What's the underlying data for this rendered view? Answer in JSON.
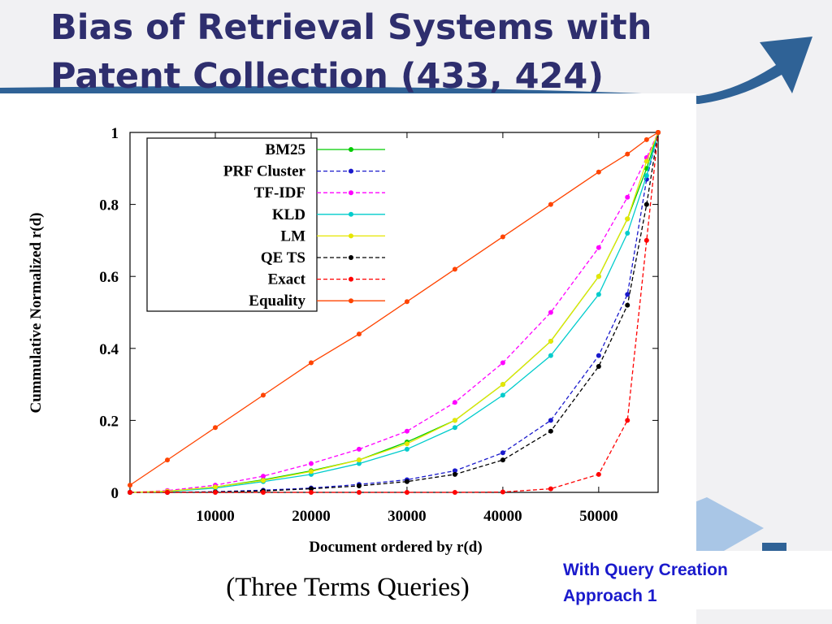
{
  "slide": {
    "title_line1": "Bias of Retrieval Systems with",
    "title_line2": "Patent Collection (433, 424)",
    "caption": "(Three Terms Queries)",
    "note_line1": "With Query Creation",
    "note_line2": "Approach 1"
  },
  "chart_data": {
    "type": "line",
    "xlabel": "Document ordered by r(d)",
    "ylabel": "Cummulative Normalized r(d)",
    "x": [
      1100,
      5000,
      10000,
      15000,
      20000,
      25000,
      30000,
      35000,
      40000,
      45000,
      50000,
      53000,
      55000,
      56200
    ],
    "xlim": [
      1100,
      56200
    ],
    "ylim": [
      0,
      1
    ],
    "xticks": [
      10000,
      20000,
      30000,
      40000,
      50000
    ],
    "yticks": [
      0,
      0.2,
      0.4,
      0.6,
      0.8,
      1
    ],
    "legend": "top-left",
    "series": [
      {
        "name": "BM25",
        "color": "#00cc00",
        "dash": "solid",
        "values": [
          0,
          0.003,
          0.015,
          0.035,
          0.06,
          0.09,
          0.14,
          0.2,
          0.3,
          0.42,
          0.6,
          0.76,
          0.9,
          1
        ]
      },
      {
        "name": "PRF Cluster",
        "color": "#1a1acc",
        "dash": "dashed",
        "values": [
          0,
          0,
          0.002,
          0.006,
          0.012,
          0.022,
          0.035,
          0.06,
          0.11,
          0.2,
          0.38,
          0.55,
          0.87,
          1
        ]
      },
      {
        "name": "TF-IDF",
        "color": "#ff00ff",
        "dash": "dashed",
        "values": [
          0,
          0.005,
          0.02,
          0.045,
          0.08,
          0.12,
          0.17,
          0.25,
          0.36,
          0.5,
          0.68,
          0.82,
          0.93,
          1
        ]
      },
      {
        "name": "KLD",
        "color": "#00cccc",
        "dash": "solid",
        "values": [
          0,
          0.002,
          0.012,
          0.03,
          0.05,
          0.08,
          0.12,
          0.18,
          0.27,
          0.38,
          0.55,
          0.72,
          0.88,
          1
        ]
      },
      {
        "name": "LM",
        "color": "#e6e600",
        "dash": "solid",
        "values": [
          0,
          0.003,
          0.015,
          0.033,
          0.058,
          0.09,
          0.135,
          0.2,
          0.3,
          0.42,
          0.6,
          0.76,
          0.92,
          1
        ]
      },
      {
        "name": "QE TS",
        "color": "#000000",
        "dash": "dashed",
        "values": [
          0,
          0,
          0.001,
          0.004,
          0.01,
          0.018,
          0.03,
          0.05,
          0.09,
          0.17,
          0.35,
          0.52,
          0.8,
          1
        ]
      },
      {
        "name": "Exact",
        "color": "#ff0000",
        "dash": "dashed",
        "values": [
          0,
          0,
          0,
          0,
          0,
          0,
          0,
          0,
          0.001,
          0.01,
          0.05,
          0.2,
          0.7,
          1
        ]
      },
      {
        "name": "Equality",
        "color": "#ff4400",
        "dash": "solid",
        "values": [
          0.02,
          0.09,
          0.18,
          0.27,
          0.36,
          0.44,
          0.53,
          0.62,
          0.71,
          0.8,
          0.89,
          0.94,
          0.98,
          1
        ]
      }
    ]
  }
}
